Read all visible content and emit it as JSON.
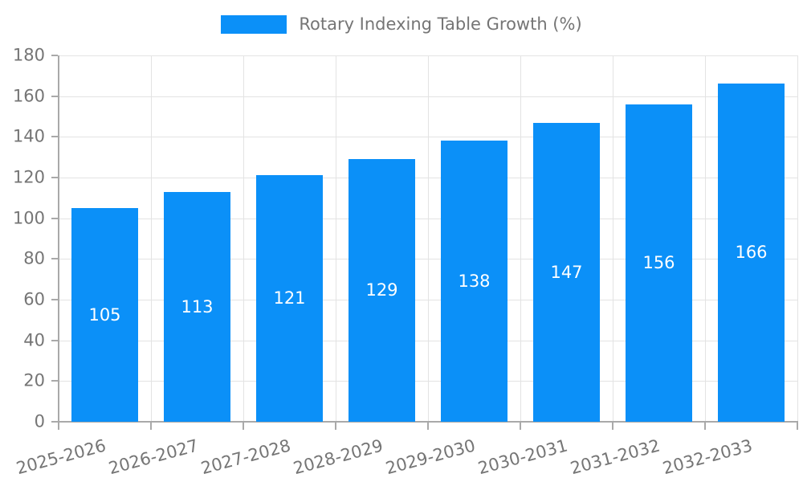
{
  "legend": {
    "label": "Rotary Indexing Table Growth (%)",
    "swatch_color": "#0B90F8"
  },
  "chart_data": {
    "type": "bar",
    "title": "Rotary Indexing Table Growth (%)",
    "categories": [
      "2025-2026",
      "2026-2027",
      "2027-2028",
      "2028-2029",
      "2029-2030",
      "2030-2031",
      "2031-2032",
      "2032-2033"
    ],
    "values": [
      105,
      113,
      121,
      129,
      138,
      147,
      156,
      166
    ],
    "xlabel": "",
    "ylabel": "",
    "ylim": [
      0,
      180
    ],
    "ytick_interval": 20,
    "yticks": [
      0,
      20,
      40,
      60,
      80,
      100,
      120,
      140,
      160,
      180
    ],
    "grid": true,
    "legend_position": "top",
    "x_label_rotation_deg": -15,
    "bar_color": "#0B90F8",
    "value_label_color": "#FFFFFF",
    "axis_text_color": "#757575",
    "gridline_color": "#E3E3E3",
    "axis_line_color": "#A9A9A9",
    "background_color": "#FFFFFF"
  }
}
